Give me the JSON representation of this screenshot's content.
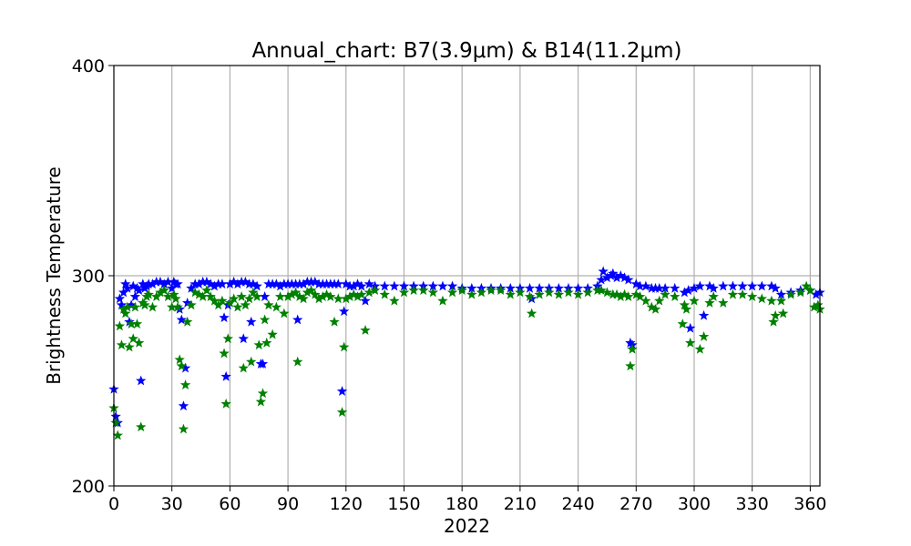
{
  "chart_data": {
    "type": "scatter",
    "title": "Annual_chart: B7(3.9μm) & B14(11.2μm)",
    "xlabel": "2022",
    "ylabel": "Brightness Temperature",
    "xlim": [
      0,
      365
    ],
    "ylim": [
      200,
      400
    ],
    "x_ticks": [
      0,
      30,
      60,
      90,
      120,
      150,
      180,
      210,
      240,
      270,
      300,
      330,
      360
    ],
    "y_ticks": [
      200,
      300,
      400
    ],
    "grid": "vertical gridlines at x ticks, horizontal gridline at 300",
    "legend": "none",
    "marker": "star",
    "series": [
      {
        "color": "#0000ff",
        "points": [
          [
            0,
            246
          ],
          [
            1,
            233
          ],
          [
            2,
            230
          ],
          [
            3,
            289
          ],
          [
            4,
            286
          ],
          [
            5,
            292
          ],
          [
            6,
            296
          ],
          [
            7,
            294
          ],
          [
            8,
            278
          ],
          [
            9,
            286
          ],
          [
            10,
            295
          ],
          [
            11,
            290
          ],
          [
            12,
            294
          ],
          [
            13,
            293
          ],
          [
            14,
            250
          ],
          [
            15,
            296
          ],
          [
            16,
            294
          ],
          [
            17,
            295
          ],
          [
            18,
            296
          ],
          [
            20,
            296
          ],
          [
            22,
            297
          ],
          [
            24,
            297
          ],
          [
            26,
            296
          ],
          [
            28,
            297
          ],
          [
            30,
            294
          ],
          [
            31,
            297
          ],
          [
            32,
            296
          ],
          [
            33,
            296
          ],
          [
            34,
            284
          ],
          [
            35,
            279
          ],
          [
            36,
            238
          ],
          [
            37,
            256
          ],
          [
            38,
            287
          ],
          [
            40,
            294
          ],
          [
            42,
            296
          ],
          [
            44,
            296
          ],
          [
            46,
            297
          ],
          [
            48,
            297
          ],
          [
            50,
            296
          ],
          [
            52,
            295
          ],
          [
            54,
            296
          ],
          [
            56,
            296
          ],
          [
            57,
            280
          ],
          [
            58,
            252
          ],
          [
            59,
            286
          ],
          [
            60,
            296
          ],
          [
            62,
            297
          ],
          [
            64,
            296
          ],
          [
            66,
            297
          ],
          [
            67,
            270
          ],
          [
            68,
            297
          ],
          [
            70,
            296
          ],
          [
            71,
            278
          ],
          [
            72,
            296
          ],
          [
            74,
            295
          ],
          [
            76,
            258
          ],
          [
            77,
            258
          ],
          [
            78,
            290
          ],
          [
            80,
            296
          ],
          [
            82,
            296
          ],
          [
            84,
            296
          ],
          [
            86,
            295
          ],
          [
            88,
            296
          ],
          [
            90,
            296
          ],
          [
            92,
            296
          ],
          [
            94,
            296
          ],
          [
            95,
            279
          ],
          [
            96,
            296
          ],
          [
            98,
            296
          ],
          [
            100,
            297
          ],
          [
            102,
            297
          ],
          [
            104,
            297
          ],
          [
            106,
            296
          ],
          [
            108,
            296
          ],
          [
            110,
            296
          ],
          [
            112,
            296
          ],
          [
            114,
            296
          ],
          [
            116,
            296
          ],
          [
            118,
            245
          ],
          [
            119,
            283
          ],
          [
            120,
            296
          ],
          [
            122,
            295
          ],
          [
            124,
            295
          ],
          [
            126,
            296
          ],
          [
            128,
            295
          ],
          [
            130,
            288
          ],
          [
            132,
            296
          ],
          [
            135,
            295
          ],
          [
            140,
            295
          ],
          [
            145,
            295
          ],
          [
            150,
            295
          ],
          [
            155,
            295
          ],
          [
            160,
            295
          ],
          [
            165,
            295
          ],
          [
            170,
            295
          ],
          [
            175,
            295
          ],
          [
            180,
            294
          ],
          [
            185,
            294
          ],
          [
            190,
            294
          ],
          [
            195,
            294
          ],
          [
            200,
            294
          ],
          [
            205,
            294
          ],
          [
            210,
            294
          ],
          [
            215,
            294
          ],
          [
            216,
            289
          ],
          [
            220,
            294
          ],
          [
            225,
            294
          ],
          [
            230,
            294
          ],
          [
            235,
            294
          ],
          [
            240,
            294
          ],
          [
            245,
            294
          ],
          [
            250,
            295
          ],
          [
            252,
            298
          ],
          [
            253,
            302
          ],
          [
            255,
            299
          ],
          [
            257,
            300
          ],
          [
            258,
            301
          ],
          [
            260,
            299
          ],
          [
            262,
            300
          ],
          [
            264,
            299
          ],
          [
            266,
            298
          ],
          [
            267,
            268
          ],
          [
            268,
            267
          ],
          [
            270,
            296
          ],
          [
            272,
            295
          ],
          [
            275,
            295
          ],
          [
            278,
            294
          ],
          [
            280,
            294
          ],
          [
            282,
            294
          ],
          [
            285,
            294
          ],
          [
            290,
            294
          ],
          [
            295,
            292
          ],
          [
            297,
            293
          ],
          [
            298,
            275
          ],
          [
            300,
            294
          ],
          [
            303,
            295
          ],
          [
            305,
            281
          ],
          [
            308,
            295
          ],
          [
            310,
            294
          ],
          [
            315,
            295
          ],
          [
            320,
            295
          ],
          [
            325,
            295
          ],
          [
            330,
            295
          ],
          [
            335,
            295
          ],
          [
            340,
            295
          ],
          [
            342,
            294
          ],
          [
            345,
            291
          ],
          [
            350,
            292
          ],
          [
            355,
            293
          ],
          [
            360,
            293
          ],
          [
            363,
            291
          ],
          [
            365,
            292
          ]
        ]
      },
      {
        "color": "#008000",
        "points": [
          [
            0,
            237
          ],
          [
            1,
            230
          ],
          [
            2,
            224
          ],
          [
            3,
            276
          ],
          [
            4,
            267
          ],
          [
            5,
            284
          ],
          [
            6,
            282
          ],
          [
            7,
            285
          ],
          [
            8,
            266
          ],
          [
            9,
            277
          ],
          [
            10,
            270
          ],
          [
            11,
            285
          ],
          [
            12,
            277
          ],
          [
            13,
            268
          ],
          [
            14,
            228
          ],
          [
            15,
            287
          ],
          [
            16,
            286
          ],
          [
            17,
            290
          ],
          [
            18,
            291
          ],
          [
            20,
            285
          ],
          [
            22,
            290
          ],
          [
            24,
            292
          ],
          [
            26,
            293
          ],
          [
            28,
            290
          ],
          [
            30,
            285
          ],
          [
            31,
            291
          ],
          [
            32,
            289
          ],
          [
            33,
            285
          ],
          [
            34,
            260
          ],
          [
            35,
            257
          ],
          [
            36,
            227
          ],
          [
            37,
            248
          ],
          [
            38,
            278
          ],
          [
            40,
            286
          ],
          [
            42,
            292
          ],
          [
            44,
            291
          ],
          [
            46,
            290
          ],
          [
            48,
            293
          ],
          [
            50,
            290
          ],
          [
            52,
            288
          ],
          [
            54,
            286
          ],
          [
            56,
            288
          ],
          [
            57,
            263
          ],
          [
            58,
            239
          ],
          [
            59,
            270
          ],
          [
            60,
            287
          ],
          [
            62,
            289
          ],
          [
            64,
            285
          ],
          [
            66,
            290
          ],
          [
            67,
            256
          ],
          [
            68,
            286
          ],
          [
            70,
            289
          ],
          [
            71,
            259
          ],
          [
            72,
            292
          ],
          [
            74,
            290
          ],
          [
            75,
            267
          ],
          [
            76,
            240
          ],
          [
            77,
            244
          ],
          [
            78,
            279
          ],
          [
            79,
            268
          ],
          [
            80,
            286
          ],
          [
            82,
            272
          ],
          [
            84,
            285
          ],
          [
            86,
            290
          ],
          [
            88,
            282
          ],
          [
            90,
            290
          ],
          [
            92,
            291
          ],
          [
            94,
            292
          ],
          [
            95,
            259
          ],
          [
            96,
            290
          ],
          [
            98,
            289
          ],
          [
            100,
            292
          ],
          [
            102,
            293
          ],
          [
            104,
            291
          ],
          [
            106,
            289
          ],
          [
            108,
            290
          ],
          [
            110,
            291
          ],
          [
            112,
            290
          ],
          [
            114,
            278
          ],
          [
            116,
            289
          ],
          [
            118,
            235
          ],
          [
            119,
            266
          ],
          [
            120,
            289
          ],
          [
            122,
            290
          ],
          [
            124,
            291
          ],
          [
            126,
            290
          ],
          [
            128,
            291
          ],
          [
            130,
            274
          ],
          [
            132,
            292
          ],
          [
            135,
            293
          ],
          [
            140,
            291
          ],
          [
            145,
            288
          ],
          [
            150,
            292
          ],
          [
            155,
            293
          ],
          [
            160,
            293
          ],
          [
            165,
            292
          ],
          [
            170,
            288
          ],
          [
            175,
            292
          ],
          [
            180,
            293
          ],
          [
            185,
            291
          ],
          [
            190,
            292
          ],
          [
            195,
            293
          ],
          [
            200,
            293
          ],
          [
            205,
            291
          ],
          [
            210,
            292
          ],
          [
            215,
            290
          ],
          [
            216,
            282
          ],
          [
            220,
            291
          ],
          [
            225,
            292
          ],
          [
            230,
            291
          ],
          [
            235,
            292
          ],
          [
            240,
            291
          ],
          [
            245,
            292
          ],
          [
            250,
            293
          ],
          [
            252,
            293
          ],
          [
            255,
            292
          ],
          [
            258,
            291
          ],
          [
            260,
            291
          ],
          [
            262,
            290
          ],
          [
            264,
            291
          ],
          [
            266,
            290
          ],
          [
            267,
            257
          ],
          [
            268,
            265
          ],
          [
            270,
            291
          ],
          [
            272,
            290
          ],
          [
            275,
            288
          ],
          [
            278,
            285
          ],
          [
            280,
            284
          ],
          [
            282,
            288
          ],
          [
            285,
            291
          ],
          [
            290,
            290
          ],
          [
            294,
            277
          ],
          [
            295,
            286
          ],
          [
            296,
            284
          ],
          [
            298,
            268
          ],
          [
            300,
            288
          ],
          [
            303,
            265
          ],
          [
            305,
            271
          ],
          [
            308,
            287
          ],
          [
            310,
            290
          ],
          [
            315,
            287
          ],
          [
            320,
            291
          ],
          [
            325,
            291
          ],
          [
            330,
            290
          ],
          [
            335,
            289
          ],
          [
            340,
            288
          ],
          [
            341,
            278
          ],
          [
            342,
            281
          ],
          [
            345,
            288
          ],
          [
            346,
            282
          ],
          [
            350,
            291
          ],
          [
            355,
            292
          ],
          [
            358,
            295
          ],
          [
            360,
            293
          ],
          [
            362,
            285
          ],
          [
            364,
            286
          ],
          [
            365,
            284
          ]
        ]
      }
    ]
  }
}
